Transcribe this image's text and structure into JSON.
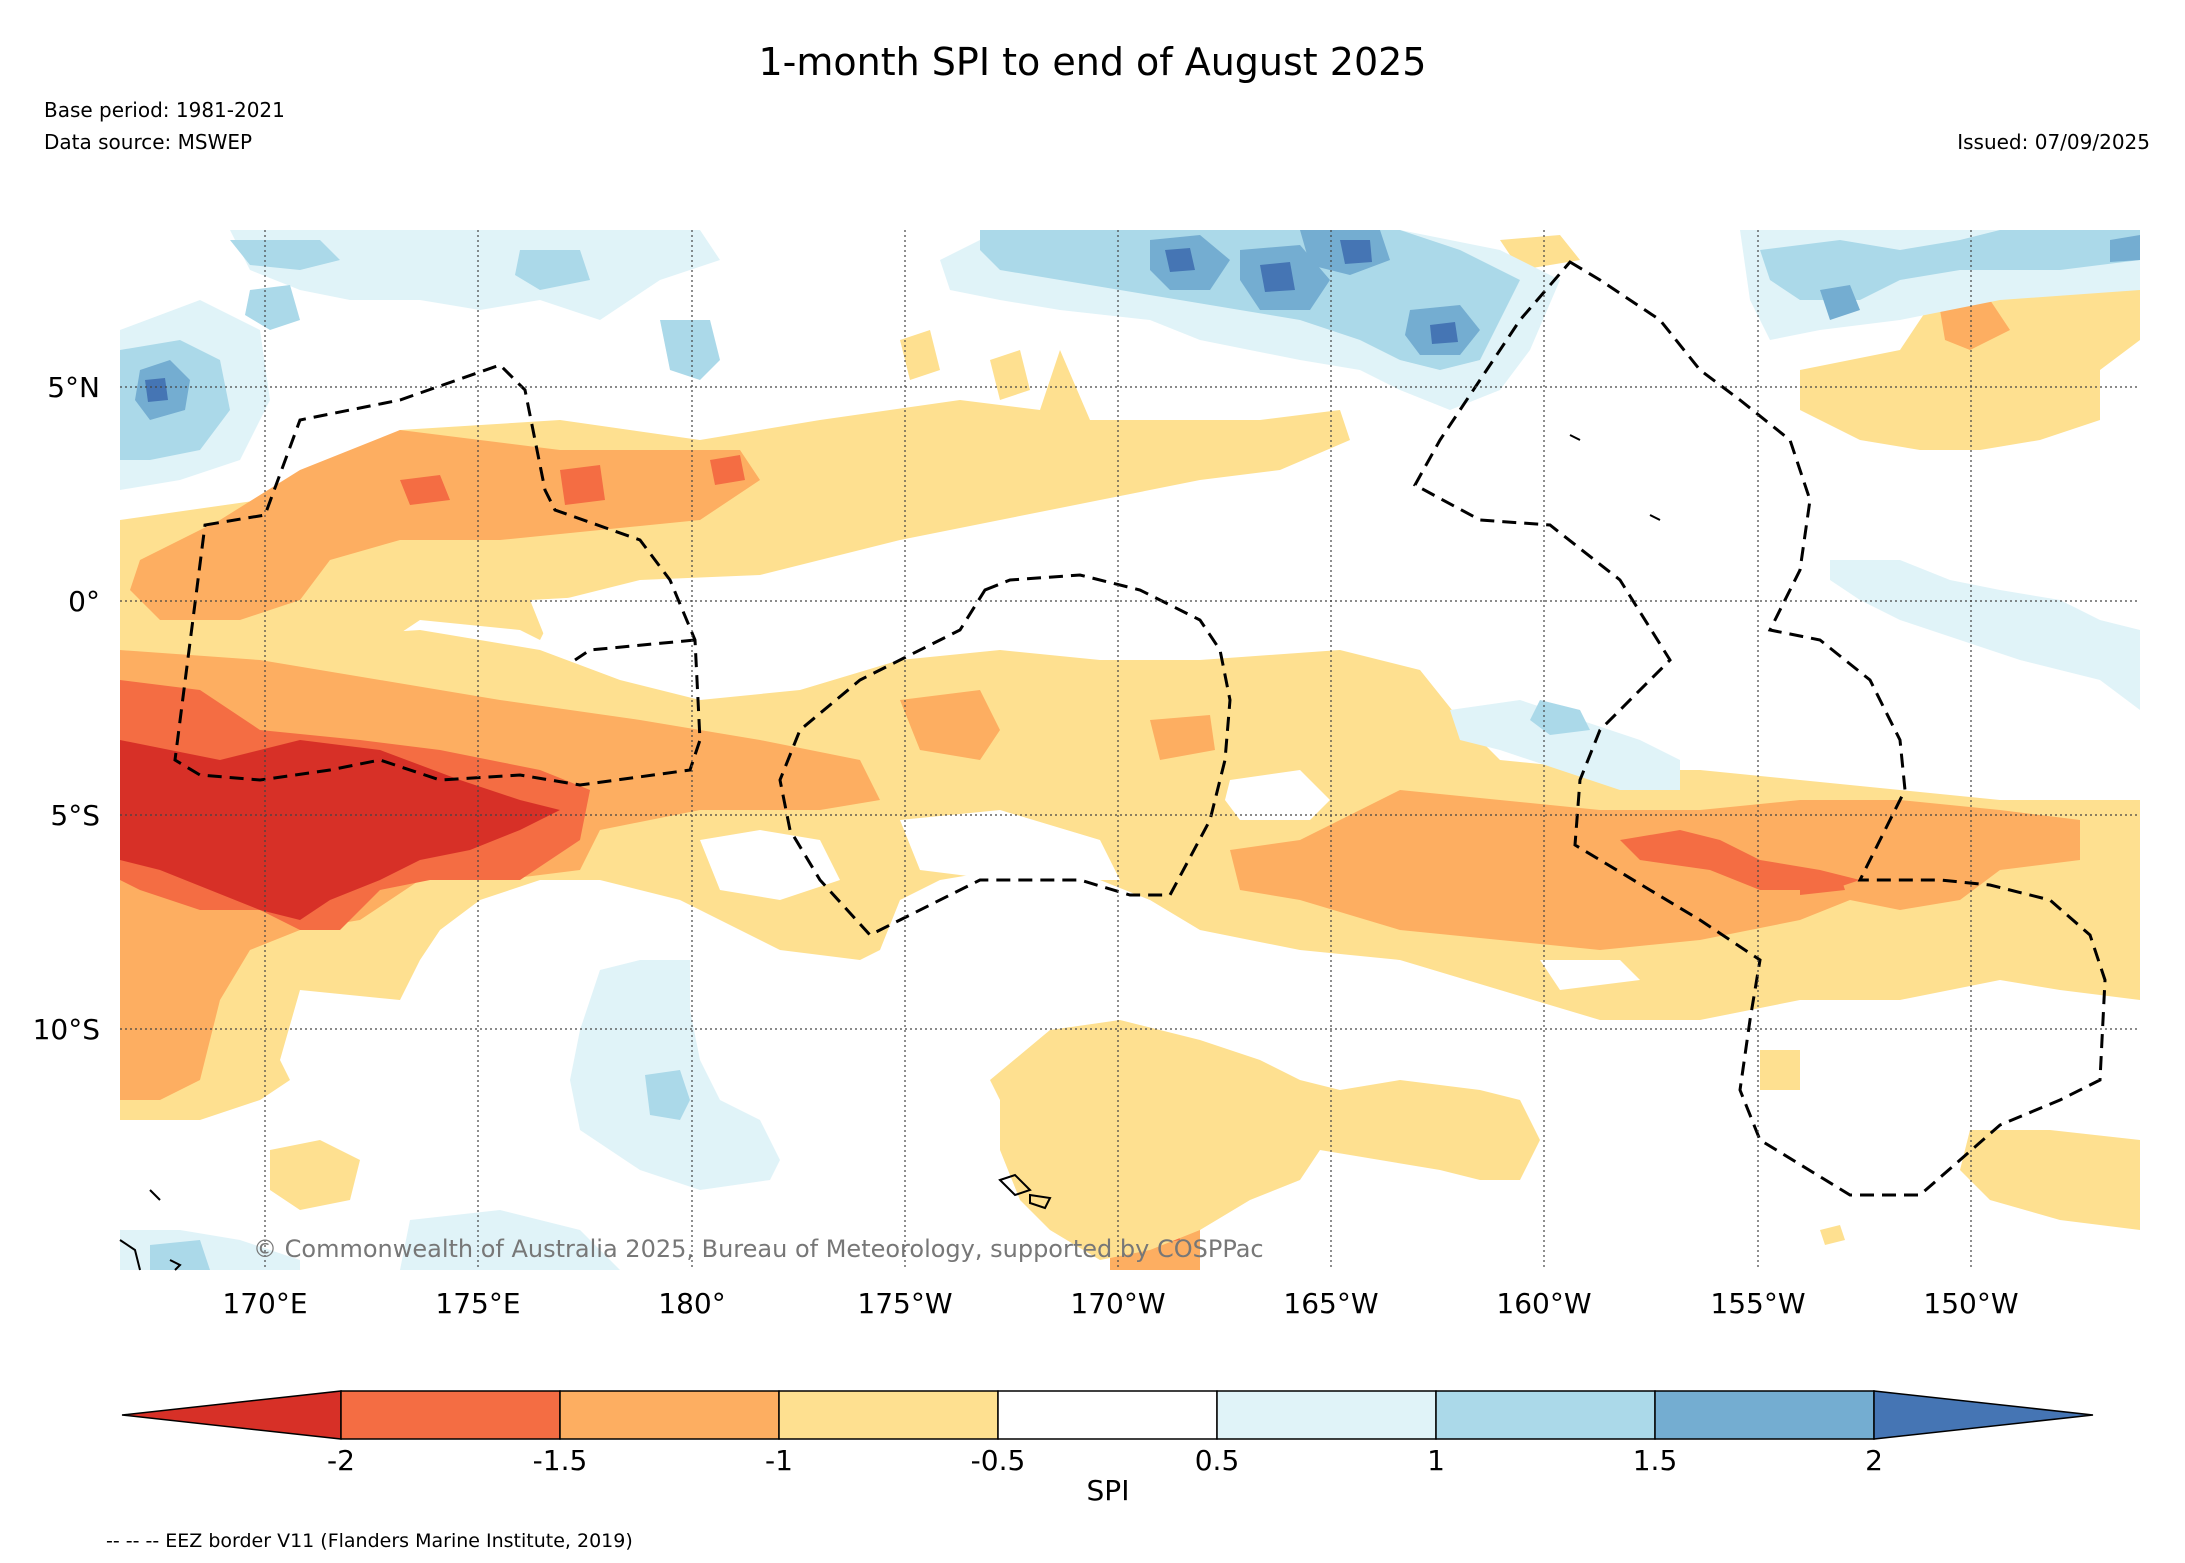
{
  "title": "1-month SPI to end of August 2025",
  "base_period": "Base period: 1981-2021",
  "data_source": "Data source: MSWEP",
  "issued": "Issued: 07/09/2025",
  "copyright": "© Commonwealth of Australia 2025, Bureau of Meteorology, supported by COSPPac",
  "lat_labels": [
    "5°N",
    "0°",
    "5°S",
    "10°S"
  ],
  "lon_labels": [
    "170°E",
    "175°E",
    "180°",
    "175°W",
    "170°W",
    "165°W",
    "160°W",
    "155°W",
    "150°W"
  ],
  "colorbar": {
    "label": "SPI",
    "ticks": [
      "-2",
      "-1.5",
      "-1",
      "-0.5",
      "0.5",
      "1",
      "1.5",
      "2"
    ],
    "colors": [
      "#d73027",
      "#f46d43",
      "#fdae61",
      "#fee090",
      "#ffffff",
      "#e0f3f8",
      "#abd9e9",
      "#74add1",
      "#4575b4"
    ]
  },
  "footnote": "-- -- -- EEZ border V11 (Flanders Marine Institute, 2019)",
  "colors": {
    "very_dry": "#d73027",
    "dry": "#f46d43",
    "mod_dry": "#fdae61",
    "slight_dry": "#fee090",
    "slight_wet": "#e0f3f8",
    "mod_wet": "#abd9e9",
    "wet": "#74add1",
    "very_wet": "#4575b4"
  }
}
